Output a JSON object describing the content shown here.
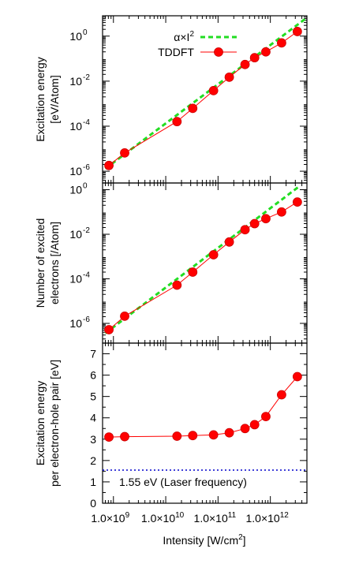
{
  "chart_data": [
    {
      "type": "line",
      "ylabel": [
        "Excitation energy",
        "[eV/Atom]"
      ],
      "yscale": "log",
      "xscale": "log",
      "ylim": [
        3e-07,
        8
      ],
      "yticks": [
        {
          "value": 1e-06,
          "label": "10",
          "exp": "-6"
        },
        {
          "value": 0.0001,
          "label": "10",
          "exp": "-4"
        },
        {
          "value": 0.01,
          "label": "10",
          "exp": "-2"
        },
        {
          "value": 1,
          "label": "10",
          "exp": "0"
        }
      ],
      "legend": {
        "position": "top-left",
        "entries": [
          {
            "prefix": "α×I",
            "exp": "2",
            "style": "dashed",
            "color": "#22dd22"
          },
          {
            "prefix": "TDDFT",
            "exp": "",
            "style": "line-marker",
            "color": "#ff0000"
          }
        ]
      },
      "series": [
        {
          "name": "α×I²",
          "style": "dashed",
          "color": "#22dd22",
          "x": [
            700000000.0,
            5000000000000.0
          ],
          "y": [
            1.3e-06,
            6.6
          ]
        },
        {
          "name": "TDDFT",
          "style": "line-marker",
          "color": "#ff0000",
          "x": [
            820000000.0,
            1640000000.0,
            16400000000.0,
            32800000000.0,
            82000000000.0,
            164000000000.0,
            328000000000.0,
            500000000000.0,
            820000000000.0,
            1640000000000.0,
            3280000000000.0
          ],
          "y": [
            1.8e-06,
            6.5e-06,
            0.00016,
            0.00062,
            0.0038,
            0.015,
            0.055,
            0.11,
            0.2,
            0.5,
            1.6
          ]
        }
      ]
    },
    {
      "type": "line",
      "ylabel": [
        "Number of excited",
        "electrons [/Atom]"
      ],
      "yscale": "log",
      "xscale": "log",
      "ylim": [
        1.3e-07,
        2
      ],
      "yticks": [
        {
          "value": 1e-06,
          "label": "10",
          "exp": "-6"
        },
        {
          "value": 0.0001,
          "label": "10",
          "exp": "-4"
        },
        {
          "value": 0.01,
          "label": "10",
          "exp": "-2"
        },
        {
          "value": 1,
          "label": "10",
          "exp": "0"
        }
      ],
      "series": [
        {
          "name": "α×I²",
          "style": "dashed",
          "color": "#22dd22",
          "x": [
            700000000.0,
            3400000000000.0
          ],
          "y": [
            3.6e-07,
            1.3
          ]
        },
        {
          "name": "TDDFT",
          "style": "line-marker",
          "color": "#ff0000",
          "x": [
            820000000.0,
            1640000000.0,
            16400000000.0,
            32800000000.0,
            82000000000.0,
            164000000000.0,
            328000000000.0,
            500000000000.0,
            820000000000.0,
            1640000000000.0,
            3280000000000.0
          ],
          "y": [
            5.2e-07,
            2.1e-06,
            5.2e-05,
            0.0002,
            0.0012,
            0.0045,
            0.016,
            0.03,
            0.05,
            0.1,
            0.28
          ]
        }
      ]
    },
    {
      "type": "line",
      "ylabel": [
        "Excitation energy",
        "per electron-hole pair [eV]"
      ],
      "yscale": "linear",
      "xscale": "log",
      "ylim": [
        0,
        7.5
      ],
      "yticks": [
        {
          "value": 0,
          "label": "0"
        },
        {
          "value": 1,
          "label": "1"
        },
        {
          "value": 2,
          "label": "2"
        },
        {
          "value": 3,
          "label": "3"
        },
        {
          "value": 4,
          "label": "4"
        },
        {
          "value": 5,
          "label": "5"
        },
        {
          "value": 6,
          "label": "6"
        },
        {
          "value": 7,
          "label": "7"
        }
      ],
      "reference_line": {
        "y": 1.55,
        "label": "1.55 eV (Laser frequency)",
        "color": "#0000cc",
        "style": "dotted"
      },
      "series": [
        {
          "name": "TDDFT",
          "style": "line-marker",
          "color": "#ff0000",
          "x": [
            820000000.0,
            1640000000.0,
            16400000000.0,
            32800000000.0,
            82000000000.0,
            164000000000.0,
            328000000000.0,
            500000000000.0,
            820000000000.0,
            1640000000000.0,
            3280000000000.0
          ],
          "y": [
            3.1,
            3.12,
            3.14,
            3.17,
            3.2,
            3.3,
            3.5,
            3.68,
            4.06,
            5.08,
            5.93
          ]
        }
      ]
    }
  ],
  "xaxis": {
    "label": "Intensity [W/cm",
    "label_exp": "2",
    "label_suffix": "]",
    "xlim": [
      620000000.0,
      5000000000000.0
    ],
    "ticks": [
      {
        "value": 1000000000.0,
        "label": "1.0×10",
        "exp": "9"
      },
      {
        "value": 10000000000.0,
        "label": "1.0×10",
        "exp": "10"
      },
      {
        "value": 100000000000.0,
        "label": "1.0×10",
        "exp": "11"
      },
      {
        "value": 1000000000000.0,
        "label": "1.0×10",
        "exp": "12"
      }
    ]
  }
}
